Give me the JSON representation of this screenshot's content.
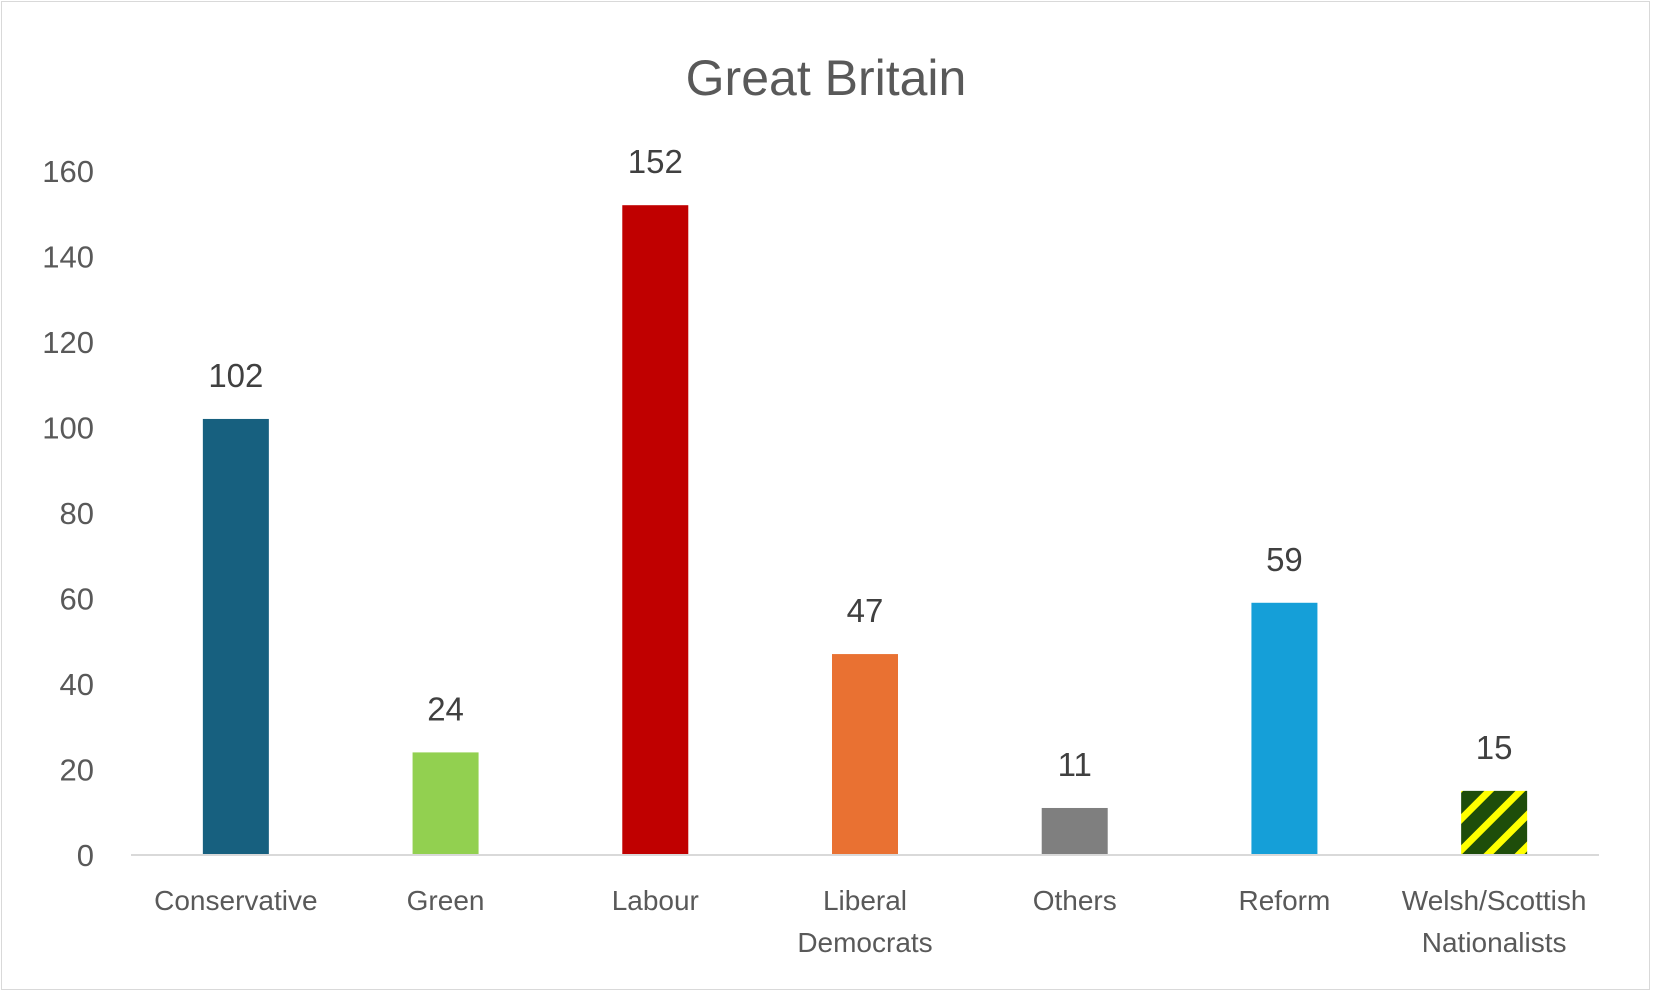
{
  "chart_data": {
    "type": "bar",
    "title": "Great Britain",
    "categories": [
      [
        "Conservative"
      ],
      [
        "Green"
      ],
      [
        "Labour"
      ],
      [
        "Liberal",
        "Democrats"
      ],
      [
        "Others"
      ],
      [
        "Reform"
      ],
      [
        "Welsh/Scottish",
        "Nationalists"
      ]
    ],
    "values": [
      102,
      24,
      152,
      47,
      11,
      59,
      15
    ],
    "colors": [
      "#17607f",
      "#92d050",
      "#c00000",
      "#e97132",
      "#7f7f7f",
      "#159fd8",
      "pattern:diagonal-stripe:#1e4d0a/#ffff00"
    ],
    "data_labels": [
      "102",
      "24",
      "152",
      "47",
      "11",
      "59",
      "15"
    ],
    "ylim": [
      0,
      160
    ],
    "yticks": [
      "0",
      "20",
      "40",
      "60",
      "80",
      "100",
      "120",
      "140",
      "160"
    ],
    "xlabel": "",
    "ylabel": "",
    "grid": false,
    "legend": "none"
  }
}
